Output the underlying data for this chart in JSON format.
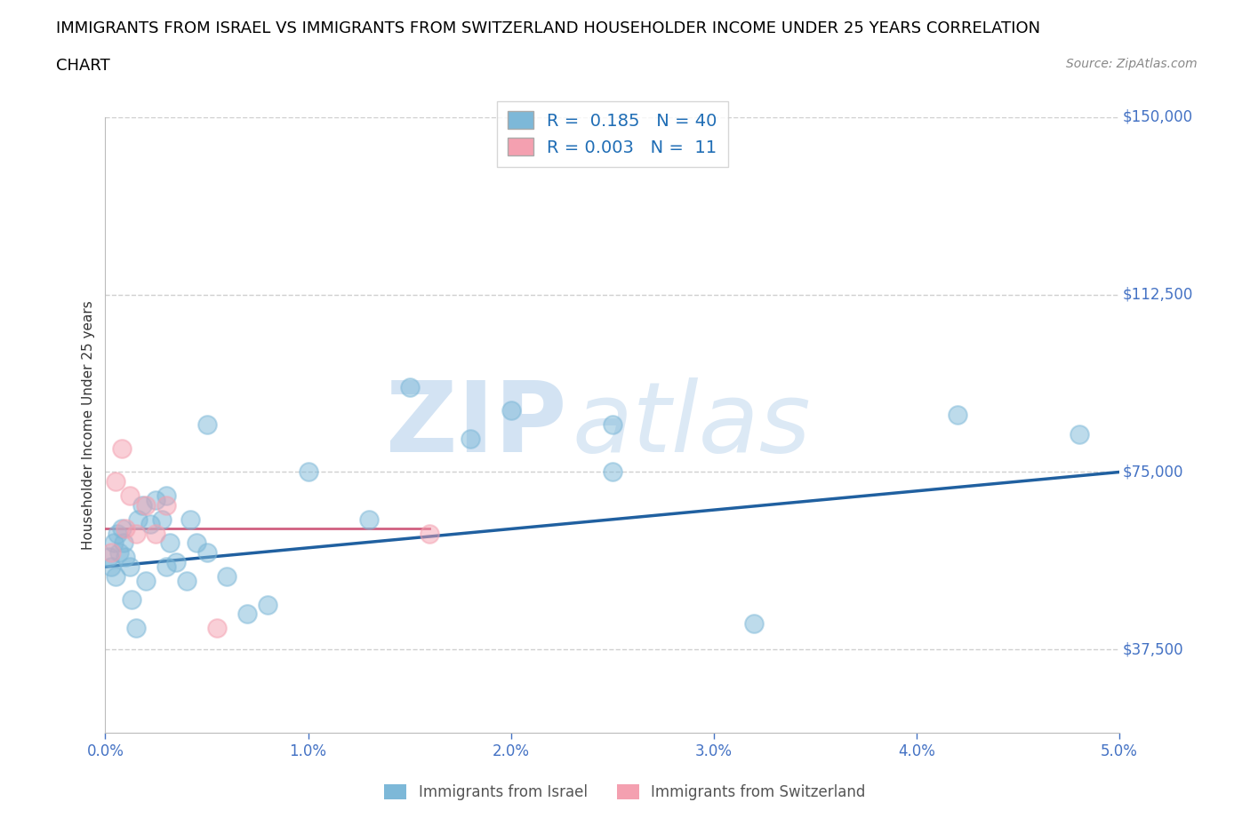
{
  "title_line1": "IMMIGRANTS FROM ISRAEL VS IMMIGRANTS FROM SWITZERLAND HOUSEHOLDER INCOME UNDER 25 YEARS CORRELATION",
  "title_line2": "CHART",
  "source_text": "Source: ZipAtlas.com",
  "ylabel": "Householder Income Under 25 years",
  "xlim": [
    0.0,
    0.05
  ],
  "ylim": [
    20000,
    150000
  ],
  "yticks": [
    37500,
    75000,
    112500,
    150000
  ],
  "ytick_labels": [
    "$37,500",
    "$75,000",
    "$112,500",
    "$150,000"
  ],
  "xticks": [
    0.0,
    0.01,
    0.02,
    0.03,
    0.04,
    0.05
  ],
  "xtick_labels": [
    "0.0%",
    "1.0%",
    "2.0%",
    "3.0%",
    "4.0%",
    "5.0%"
  ],
  "israel_color": "#7db8d8",
  "switzerland_color": "#f4a0b0",
  "israel_R": 0.185,
  "israel_N": 40,
  "switzerland_R": 0.003,
  "switzerland_N": 11,
  "israel_x": [
    0.0002,
    0.0003,
    0.0004,
    0.0005,
    0.0006,
    0.0007,
    0.0008,
    0.0009,
    0.001,
    0.0012,
    0.0013,
    0.0015,
    0.0016,
    0.0018,
    0.002,
    0.0022,
    0.0025,
    0.0028,
    0.003,
    0.003,
    0.0032,
    0.0035,
    0.004,
    0.0042,
    0.0045,
    0.005,
    0.005,
    0.006,
    0.007,
    0.008,
    0.01,
    0.013,
    0.015,
    0.018,
    0.02,
    0.025,
    0.025,
    0.032,
    0.042,
    0.048
  ],
  "israel_y": [
    57000,
    55000,
    60000,
    53000,
    62000,
    58000,
    63000,
    60000,
    57000,
    55000,
    48000,
    42000,
    65000,
    68000,
    52000,
    64000,
    69000,
    65000,
    70000,
    55000,
    60000,
    56000,
    52000,
    65000,
    60000,
    85000,
    58000,
    53000,
    45000,
    47000,
    75000,
    65000,
    93000,
    82000,
    88000,
    85000,
    75000,
    43000,
    87000,
    83000
  ],
  "switzerland_x": [
    0.0003,
    0.0005,
    0.0008,
    0.001,
    0.0012,
    0.0015,
    0.002,
    0.0025,
    0.003,
    0.0055,
    0.016
  ],
  "switzerland_y": [
    58000,
    73000,
    80000,
    63000,
    70000,
    62000,
    68000,
    62000,
    68000,
    42000,
    62000
  ],
  "israel_trend_x": [
    0.0,
    0.05
  ],
  "israel_trend_y": [
    55000,
    75000
  ],
  "switzerland_trend_x": [
    0.0,
    0.016
  ],
  "switzerland_trend_y": [
    63000,
    63000
  ],
  "watermark_zip": "ZIP",
  "watermark_atlas": "atlas",
  "background_color": "#ffffff",
  "grid_color": "#d0d0d0",
  "tick_color": "#4472c4",
  "title_color": "#000000",
  "title_fontsize": 13,
  "ylabel_fontsize": 11,
  "dot_size": 220,
  "dot_alpha": 0.5,
  "dot_linewidth": 1.5
}
